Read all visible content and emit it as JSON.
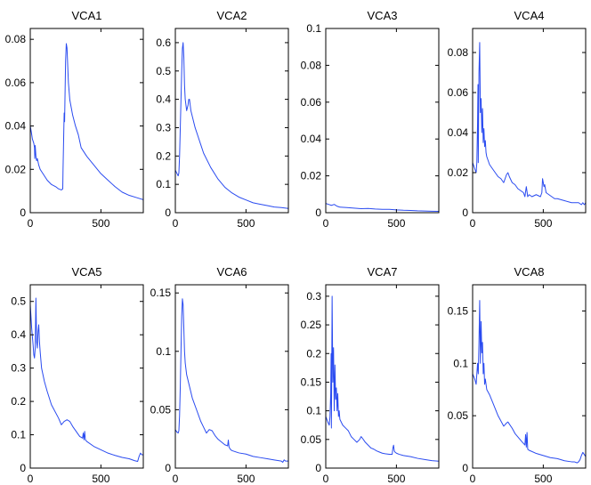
{
  "chart_data": [
    {
      "type": "line",
      "title": "VCA1",
      "xlabel": "",
      "ylabel": "",
      "xlim": [
        0,
        800
      ],
      "ylim": [
        0,
        0.085
      ],
      "xticks": [
        0,
        500
      ],
      "xtick_labels": [
        "0",
        "500"
      ],
      "yticks": [
        0,
        0.02,
        0.04,
        0.06,
        0.08
      ],
      "ytick_labels": [
        "0",
        "0.02",
        "0.04",
        "0.06",
        "0.08"
      ],
      "series": [
        {
          "name": "VCA1",
          "color": "#2a4bf0",
          "x": [
            0,
            8,
            15,
            25,
            30,
            32,
            35,
            40,
            45,
            50,
            60,
            70,
            80,
            100,
            120,
            150,
            180,
            200,
            220,
            230,
            232,
            235,
            238,
            240,
            243,
            245,
            250,
            255,
            260,
            265,
            270,
            280,
            300,
            320,
            340,
            350,
            360,
            380,
            400,
            450,
            500,
            550,
            600,
            650,
            700,
            750,
            800
          ],
          "y": [
            0.04,
            0.037,
            0.034,
            0.032,
            0.03,
            0.025,
            0.031,
            0.026,
            0.024,
            0.025,
            0.022,
            0.02,
            0.019,
            0.017,
            0.015,
            0.013,
            0.012,
            0.011,
            0.0105,
            0.011,
            0.02,
            0.03,
            0.04,
            0.046,
            0.042,
            0.05,
            0.07,
            0.078,
            0.076,
            0.068,
            0.06,
            0.052,
            0.045,
            0.04,
            0.036,
            0.033,
            0.03,
            0.028,
            0.026,
            0.022,
            0.018,
            0.015,
            0.012,
            0.0095,
            0.008,
            0.007,
            0.006
          ]
        }
      ]
    },
    {
      "type": "line",
      "title": "VCA2",
      "xlabel": "",
      "ylabel": "",
      "xlim": [
        0,
        800
      ],
      "ylim": [
        0,
        0.65
      ],
      "xticks": [
        0,
        500
      ],
      "xtick_labels": [
        "0",
        "500"
      ],
      "yticks": [
        0,
        0.1,
        0.2,
        0.3,
        0.4,
        0.5,
        0.6
      ],
      "ytick_labels": [
        "0",
        "0.1",
        "0.2",
        "0.3",
        "0.4",
        "0.5",
        "0.6"
      ],
      "series": [
        {
          "name": "VCA2",
          "color": "#2a4bf0",
          "x": [
            0,
            10,
            20,
            25,
            30,
            35,
            40,
            45,
            50,
            55,
            60,
            65,
            70,
            80,
            90,
            95,
            100,
            105,
            110,
            120,
            140,
            160,
            180,
            200,
            250,
            300,
            350,
            400,
            450,
            500,
            550,
            600,
            650,
            700,
            750,
            800
          ],
          "y": [
            0.15,
            0.14,
            0.13,
            0.14,
            0.2,
            0.3,
            0.4,
            0.5,
            0.58,
            0.6,
            0.55,
            0.45,
            0.4,
            0.36,
            0.38,
            0.4,
            0.4,
            0.38,
            0.36,
            0.34,
            0.3,
            0.27,
            0.24,
            0.21,
            0.16,
            0.12,
            0.09,
            0.07,
            0.055,
            0.045,
            0.035,
            0.03,
            0.025,
            0.02,
            0.018,
            0.015
          ]
        }
      ]
    },
    {
      "type": "line",
      "title": "VCA3",
      "xlabel": "",
      "ylabel": "",
      "xlim": [
        0,
        800
      ],
      "ylim": [
        0,
        0.1
      ],
      "xticks": [
        0,
        500
      ],
      "xtick_labels": [
        "0",
        "500"
      ],
      "yticks": [
        0,
        0.02,
        0.04,
        0.06,
        0.08,
        0.1
      ],
      "ytick_labels": [
        "0",
        "0.02",
        "0.04",
        "0.06",
        "0.08",
        "0.1"
      ],
      "series": [
        {
          "name": "VCA3",
          "color": "#2a4bf0",
          "x": [
            0,
            20,
            40,
            60,
            80,
            100,
            150,
            200,
            250,
            300,
            350,
            400,
            450,
            500,
            550,
            600,
            650,
            700,
            750,
            800
          ],
          "y": [
            0.005,
            0.0045,
            0.004,
            0.0045,
            0.0035,
            0.003,
            0.0028,
            0.0025,
            0.0022,
            0.0023,
            0.002,
            0.0018,
            0.0018,
            0.0015,
            0.0013,
            0.0012,
            0.001,
            0.0009,
            0.0008,
            0.0007
          ]
        }
      ]
    },
    {
      "type": "line",
      "title": "VCA4",
      "xlabel": "",
      "ylabel": "",
      "xlim": [
        0,
        800
      ],
      "ylim": [
        0,
        0.092
      ],
      "xticks": [
        0,
        500
      ],
      "xtick_labels": [
        "0",
        "500"
      ],
      "yticks": [
        0,
        0.02,
        0.04,
        0.06,
        0.08
      ],
      "ytick_labels": [
        "0",
        "0.02",
        "0.04",
        "0.06",
        "0.08"
      ],
      "series": [
        {
          "name": "VCA4",
          "color": "#2a4bf0",
          "x": [
            0,
            15,
            25,
            30,
            35,
            38,
            40,
            45,
            50,
            55,
            60,
            65,
            70,
            75,
            80,
            85,
            90,
            95,
            100,
            110,
            120,
            140,
            160,
            180,
            200,
            220,
            240,
            250,
            260,
            280,
            300,
            320,
            340,
            360,
            370,
            380,
            390,
            400,
            420,
            450,
            480,
            490,
            495,
            500,
            505,
            510,
            520,
            540,
            560,
            580,
            600,
            650,
            700,
            750,
            770,
            780,
            790,
            800
          ],
          "y": [
            0.025,
            0.022,
            0.02,
            0.025,
            0.045,
            0.064,
            0.025,
            0.07,
            0.085,
            0.05,
            0.057,
            0.04,
            0.052,
            0.035,
            0.042,
            0.033,
            0.036,
            0.03,
            0.028,
            0.026,
            0.024,
            0.022,
            0.02,
            0.018,
            0.017,
            0.015,
            0.019,
            0.02,
            0.018,
            0.015,
            0.014,
            0.012,
            0.011,
            0.01,
            0.008,
            0.013,
            0.008,
            0.009,
            0.008,
            0.009,
            0.008,
            0.01,
            0.017,
            0.015,
            0.013,
            0.014,
            0.01,
            0.009,
            0.008,
            0.007,
            0.007,
            0.006,
            0.005,
            0.005,
            0.004,
            0.005,
            0.004,
            0.005
          ]
        }
      ]
    },
    {
      "type": "line",
      "title": "VCA5",
      "xlabel": "",
      "ylabel": "",
      "xlim": [
        0,
        800
      ],
      "ylim": [
        0,
        0.55
      ],
      "xticks": [
        0,
        500
      ],
      "xtick_labels": [
        "0",
        "500"
      ],
      "yticks": [
        0,
        0.1,
        0.2,
        0.3,
        0.4,
        0.5
      ],
      "ytick_labels": [
        "0",
        "0.1",
        "0.2",
        "0.3",
        "0.4",
        "0.5"
      ],
      "series": [
        {
          "name": "VCA5",
          "color": "#2a4bf0",
          "x": [
            0,
            10,
            20,
            25,
            30,
            35,
            40,
            45,
            50,
            55,
            60,
            65,
            70,
            80,
            100,
            120,
            150,
            200,
            220,
            240,
            260,
            280,
            300,
            350,
            370,
            375,
            380,
            385,
            390,
            400,
            450,
            500,
            550,
            600,
            650,
            700,
            720,
            740,
            760,
            770,
            780,
            790,
            800
          ],
          "y": [
            0.49,
            0.42,
            0.37,
            0.34,
            0.33,
            0.36,
            0.51,
            0.38,
            0.36,
            0.41,
            0.43,
            0.38,
            0.35,
            0.3,
            0.26,
            0.23,
            0.19,
            0.15,
            0.13,
            0.14,
            0.145,
            0.14,
            0.125,
            0.095,
            0.09,
            0.105,
            0.085,
            0.11,
            0.085,
            0.08,
            0.065,
            0.055,
            0.045,
            0.038,
            0.032,
            0.028,
            0.025,
            0.022,
            0.02,
            0.035,
            0.045,
            0.04,
            0.04
          ]
        }
      ]
    },
    {
      "type": "line",
      "title": "VCA6",
      "xlabel": "",
      "ylabel": "",
      "xlim": [
        0,
        800
      ],
      "ylim": [
        0,
        0.157
      ],
      "xticks": [
        0,
        500
      ],
      "xtick_labels": [
        "0",
        "500"
      ],
      "yticks": [
        0,
        0.05,
        0.1,
        0.15
      ],
      "ytick_labels": [
        "0",
        "0.05",
        "0.1",
        "0.15"
      ],
      "series": [
        {
          "name": "VCA6",
          "color": "#2a4bf0",
          "x": [
            0,
            10,
            20,
            25,
            30,
            35,
            40,
            45,
            50,
            55,
            60,
            65,
            70,
            80,
            100,
            120,
            150,
            180,
            200,
            220,
            240,
            260,
            280,
            300,
            350,
            370,
            375,
            380,
            390,
            400,
            450,
            500,
            550,
            600,
            650,
            700,
            750,
            760,
            770,
            780,
            800
          ],
          "y": [
            0.033,
            0.031,
            0.03,
            0.032,
            0.045,
            0.07,
            0.1,
            0.13,
            0.145,
            0.14,
            0.12,
            0.1,
            0.09,
            0.08,
            0.07,
            0.06,
            0.05,
            0.04,
            0.035,
            0.03,
            0.033,
            0.032,
            0.028,
            0.025,
            0.02,
            0.019,
            0.024,
            0.018,
            0.016,
            0.015,
            0.013,
            0.012,
            0.01,
            0.009,
            0.008,
            0.007,
            0.006,
            0.005,
            0.007,
            0.006,
            0.006
          ]
        }
      ]
    },
    {
      "type": "line",
      "title": "VCA7",
      "xlabel": "",
      "ylabel": "",
      "xlim": [
        0,
        800
      ],
      "ylim": [
        0,
        0.32
      ],
      "xticks": [
        0,
        500
      ],
      "xtick_labels": [
        "0",
        "500"
      ],
      "yticks": [
        0,
        0.05,
        0.1,
        0.15,
        0.2,
        0.25,
        0.3
      ],
      "ytick_labels": [
        "0",
        "0.05",
        "0.1",
        "0.15",
        "0.2",
        "0.25",
        "0.3"
      ],
      "series": [
        {
          "name": "VCA7",
          "color": "#2a4bf0",
          "x": [
            0,
            15,
            25,
            30,
            35,
            38,
            40,
            45,
            50,
            55,
            60,
            65,
            70,
            75,
            80,
            85,
            90,
            95,
            100,
            110,
            120,
            140,
            160,
            180,
            200,
            220,
            240,
            250,
            260,
            280,
            300,
            320,
            340,
            360,
            380,
            400,
            420,
            450,
            470,
            475,
            480,
            485,
            490,
            500,
            520,
            550,
            600,
            650,
            700,
            750,
            800
          ],
          "y": [
            0.09,
            0.08,
            0.075,
            0.09,
            0.13,
            0.2,
            0.07,
            0.3,
            0.15,
            0.21,
            0.1,
            0.18,
            0.12,
            0.14,
            0.1,
            0.13,
            0.09,
            0.1,
            0.085,
            0.08,
            0.075,
            0.07,
            0.065,
            0.055,
            0.05,
            0.045,
            0.05,
            0.055,
            0.052,
            0.045,
            0.04,
            0.035,
            0.033,
            0.03,
            0.028,
            0.026,
            0.025,
            0.024,
            0.024,
            0.035,
            0.04,
            0.03,
            0.028,
            0.026,
            0.024,
            0.022,
            0.02,
            0.017,
            0.015,
            0.013,
            0.012
          ]
        }
      ]
    },
    {
      "type": "line",
      "title": "VCA8",
      "xlabel": "",
      "ylabel": "",
      "xlim": [
        0,
        800
      ],
      "ylim": [
        0,
        0.175
      ],
      "xticks": [
        0,
        500
      ],
      "xtick_labels": [
        "0",
        "500"
      ],
      "yticks": [
        0,
        0.05,
        0.1,
        0.15
      ],
      "ytick_labels": [
        "0",
        "0.05",
        "0.1",
        "0.15"
      ],
      "series": [
        {
          "name": "VCA8",
          "color": "#2a4bf0",
          "x": [
            0,
            15,
            25,
            30,
            35,
            40,
            45,
            50,
            55,
            60,
            65,
            70,
            75,
            80,
            85,
            90,
            100,
            120,
            150,
            180,
            200,
            220,
            240,
            250,
            260,
            280,
            300,
            350,
            370,
            375,
            380,
            385,
            390,
            400,
            450,
            500,
            550,
            600,
            650,
            700,
            720,
            740,
            750,
            760,
            770,
            780,
            790,
            800
          ],
          "y": [
            0.09,
            0.085,
            0.08,
            0.09,
            0.1,
            0.09,
            0.12,
            0.16,
            0.1,
            0.14,
            0.11,
            0.12,
            0.09,
            0.1,
            0.08,
            0.085,
            0.075,
            0.07,
            0.06,
            0.05,
            0.045,
            0.04,
            0.043,
            0.044,
            0.042,
            0.038,
            0.033,
            0.025,
            0.022,
            0.032,
            0.02,
            0.034,
            0.018,
            0.017,
            0.014,
            0.012,
            0.01,
            0.009,
            0.007,
            0.006,
            0.006,
            0.005,
            0.006,
            0.008,
            0.012,
            0.015,
            0.013,
            0.011
          ]
        }
      ]
    }
  ]
}
